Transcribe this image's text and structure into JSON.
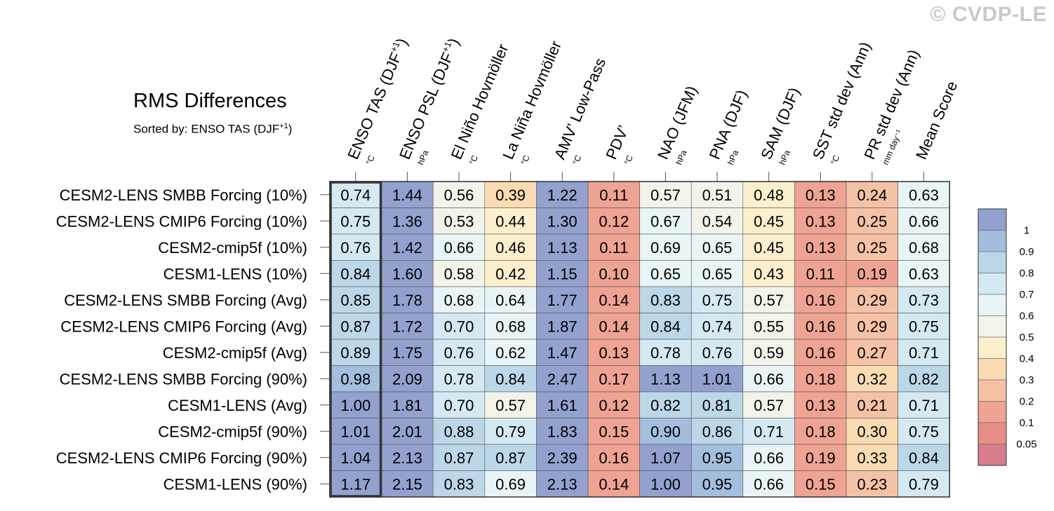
{
  "watermark": "© CVDP-LE",
  "chart_data": {
    "type": "heatmap",
    "title": "RMS Differences",
    "subtitle": "Sorted by: ENSO TAS (DJF",
    "subtitle_sup": "+1",
    "subtitle_end": ")",
    "columns": [
      {
        "label": "ENSO TAS (DJF",
        "sup": "+1",
        "end": ")",
        "unit": "°C"
      },
      {
        "label": "ENSO PSL (DJF",
        "sup": "+1",
        "end": ")",
        "unit": "hPa"
      },
      {
        "label": "El Niño Hovmöller",
        "sup": "",
        "end": "",
        "unit": "°C"
      },
      {
        "label": "La Niña Hovmöller",
        "sup": "",
        "end": "",
        "unit": "°C"
      },
      {
        "label": "AMV’ Low-Pass",
        "sup": "",
        "end": "",
        "unit": "°C"
      },
      {
        "label": "PDV’",
        "sup": "",
        "end": "",
        "unit": "°C"
      },
      {
        "label": "NAO (JFM)",
        "sup": "",
        "end": "",
        "unit": "hPa"
      },
      {
        "label": "PNA (DJF)",
        "sup": "",
        "end": "",
        "unit": "hPa"
      },
      {
        "label": "SAM (DJF)",
        "sup": "",
        "end": "",
        "unit": "hPa"
      },
      {
        "label": "SST std dev (Ann)",
        "sup": "",
        "end": "",
        "unit": "°C"
      },
      {
        "label": "PR std dev (Ann)",
        "sup": "",
        "end": "",
        "unit": "mm day⁻¹"
      },
      {
        "label": "Mean Score",
        "sup": "",
        "end": "",
        "unit": ""
      }
    ],
    "rows": [
      {
        "label": "CESM2-LENS SMBB Forcing (10%)",
        "values": [
          "0.74",
          "1.44",
          "0.56",
          "0.39",
          "1.22",
          "0.11",
          "0.57",
          "0.51",
          "0.48",
          "0.13",
          "0.24",
          "0.63"
        ]
      },
      {
        "label": "CESM2-LENS CMIP6 Forcing (10%)",
        "values": [
          "0.75",
          "1.36",
          "0.53",
          "0.44",
          "1.30",
          "0.12",
          "0.67",
          "0.54",
          "0.45",
          "0.13",
          "0.25",
          "0.66"
        ]
      },
      {
        "label": "CESM2-cmip5f (10%)",
        "values": [
          "0.76",
          "1.42",
          "0.66",
          "0.46",
          "1.13",
          "0.11",
          "0.69",
          "0.65",
          "0.45",
          "0.13",
          "0.25",
          "0.68"
        ]
      },
      {
        "label": "CESM1-LENS (10%)",
        "values": [
          "0.84",
          "1.60",
          "0.58",
          "0.42",
          "1.15",
          "0.10",
          "0.65",
          "0.65",
          "0.43",
          "0.11",
          "0.19",
          "0.63"
        ]
      },
      {
        "label": "CESM2-LENS SMBB Forcing (Avg)",
        "values": [
          "0.85",
          "1.78",
          "0.68",
          "0.64",
          "1.77",
          "0.14",
          "0.83",
          "0.75",
          "0.57",
          "0.16",
          "0.29",
          "0.73"
        ]
      },
      {
        "label": "CESM2-LENS CMIP6 Forcing (Avg)",
        "values": [
          "0.87",
          "1.72",
          "0.70",
          "0.68",
          "1.87",
          "0.14",
          "0.84",
          "0.74",
          "0.55",
          "0.16",
          "0.29",
          "0.75"
        ]
      },
      {
        "label": "CESM2-cmip5f (Avg)",
        "values": [
          "0.89",
          "1.75",
          "0.76",
          "0.62",
          "1.47",
          "0.13",
          "0.78",
          "0.76",
          "0.59",
          "0.16",
          "0.27",
          "0.71"
        ]
      },
      {
        "label": "CESM2-LENS SMBB Forcing (90%)",
        "values": [
          "0.98",
          "2.09",
          "0.78",
          "0.84",
          "2.47",
          "0.17",
          "1.13",
          "1.01",
          "0.66",
          "0.18",
          "0.32",
          "0.82"
        ]
      },
      {
        "label": "CESM1-LENS (Avg)",
        "values": [
          "1.00",
          "1.81",
          "0.70",
          "0.57",
          "1.61",
          "0.12",
          "0.82",
          "0.81",
          "0.57",
          "0.13",
          "0.21",
          "0.71"
        ]
      },
      {
        "label": "CESM2-cmip5f (90%)",
        "values": [
          "1.01",
          "2.01",
          "0.88",
          "0.79",
          "1.83",
          "0.15",
          "0.90",
          "0.86",
          "0.71",
          "0.18",
          "0.30",
          "0.75"
        ]
      },
      {
        "label": "CESM2-LENS CMIP6 Forcing (90%)",
        "values": [
          "1.04",
          "2.13",
          "0.87",
          "0.87",
          "2.39",
          "0.16",
          "1.07",
          "0.95",
          "0.66",
          "0.19",
          "0.33",
          "0.84"
        ]
      },
      {
        "label": "CESM1-LENS (90%)",
        "values": [
          "1.17",
          "2.15",
          "0.83",
          "0.69",
          "2.13",
          "0.14",
          "1.00",
          "0.95",
          "0.66",
          "0.15",
          "0.23",
          "0.79"
        ]
      }
    ],
    "highlight_column": 0,
    "colorbar": {
      "levels": [
        "1",
        "0.9",
        "0.8",
        "0.7",
        "0.6",
        "0.5",
        "0.4",
        "0.3",
        "0.2",
        "0.1",
        "0.05"
      ],
      "colors": [
        "#93a1cf",
        "#a4bede",
        "#bcd7e8",
        "#d4e9f1",
        "#e9f4f6",
        "#f2f4ea",
        "#fcefce",
        "#fbdcb2",
        "#f6c2a6",
        "#efa393",
        "#e88e88",
        "#d87c8e"
      ]
    }
  }
}
